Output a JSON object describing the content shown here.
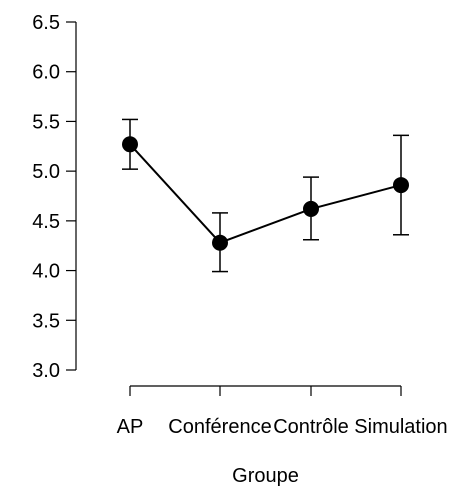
{
  "chart_data": {
    "type": "line",
    "title": "",
    "xlabel": "Groupe",
    "ylabel": "",
    "categories": [
      "AP",
      "Conférence",
      "Contrôle",
      "Simulation"
    ],
    "series": [
      {
        "values": [
          5.27,
          4.28,
          4.62,
          4.86
        ],
        "lower": [
          5.02,
          3.99,
          4.31,
          4.36
        ],
        "upper": [
          5.52,
          4.58,
          4.94,
          5.36
        ]
      }
    ],
    "ylim": [
      3.0,
      6.5
    ],
    "yticks": [
      "3.0",
      "3.5",
      "4.0",
      "4.5",
      "5.0",
      "5.5",
      "6.0",
      "6.5"
    ],
    "grid": false,
    "error_bars": true,
    "color": "#000000"
  }
}
